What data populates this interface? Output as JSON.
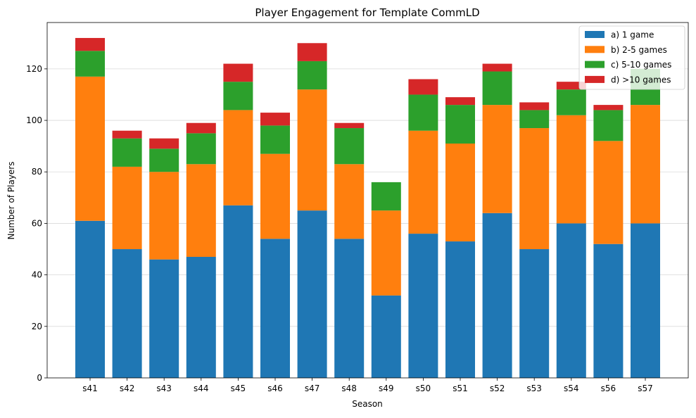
{
  "chart_data": {
    "type": "bar",
    "stacked": true,
    "title": "Player Engagement for Template CommLD",
    "xlabel": "Season",
    "ylabel": "Number of Players",
    "categories": [
      "s41",
      "s42",
      "s43",
      "s44",
      "s45",
      "s46",
      "s47",
      "s48",
      "s49",
      "s50",
      "s51",
      "s52",
      "s53",
      "s54",
      "s56",
      "s57"
    ],
    "ylim": [
      0,
      138
    ],
    "yticks": [
      0,
      20,
      40,
      60,
      80,
      100,
      120
    ],
    "grid": "horizontal",
    "legend_position": "top-right",
    "series": [
      {
        "name": "a) 1 game",
        "color": "#1f77b4",
        "values": [
          61,
          50,
          46,
          47,
          67,
          54,
          65,
          54,
          32,
          56,
          53,
          64,
          50,
          60,
          52,
          60
        ]
      },
      {
        "name": "b) 2-5 games",
        "color": "#ff7f0e",
        "values": [
          56,
          32,
          34,
          36,
          37,
          33,
          47,
          29,
          33,
          40,
          38,
          42,
          47,
          42,
          40,
          46
        ]
      },
      {
        "name": "c) 5-10 games",
        "color": "#2ca02c",
        "values": [
          10,
          11,
          9,
          12,
          11,
          11,
          11,
          14,
          11,
          14,
          15,
          13,
          7,
          10,
          12,
          14
        ]
      },
      {
        "name": "d) >10 games",
        "color": "#d62728",
        "values": [
          5,
          3,
          4,
          4,
          7,
          5,
          7,
          2,
          0,
          6,
          3,
          3,
          3,
          3,
          2,
          0
        ]
      }
    ]
  }
}
